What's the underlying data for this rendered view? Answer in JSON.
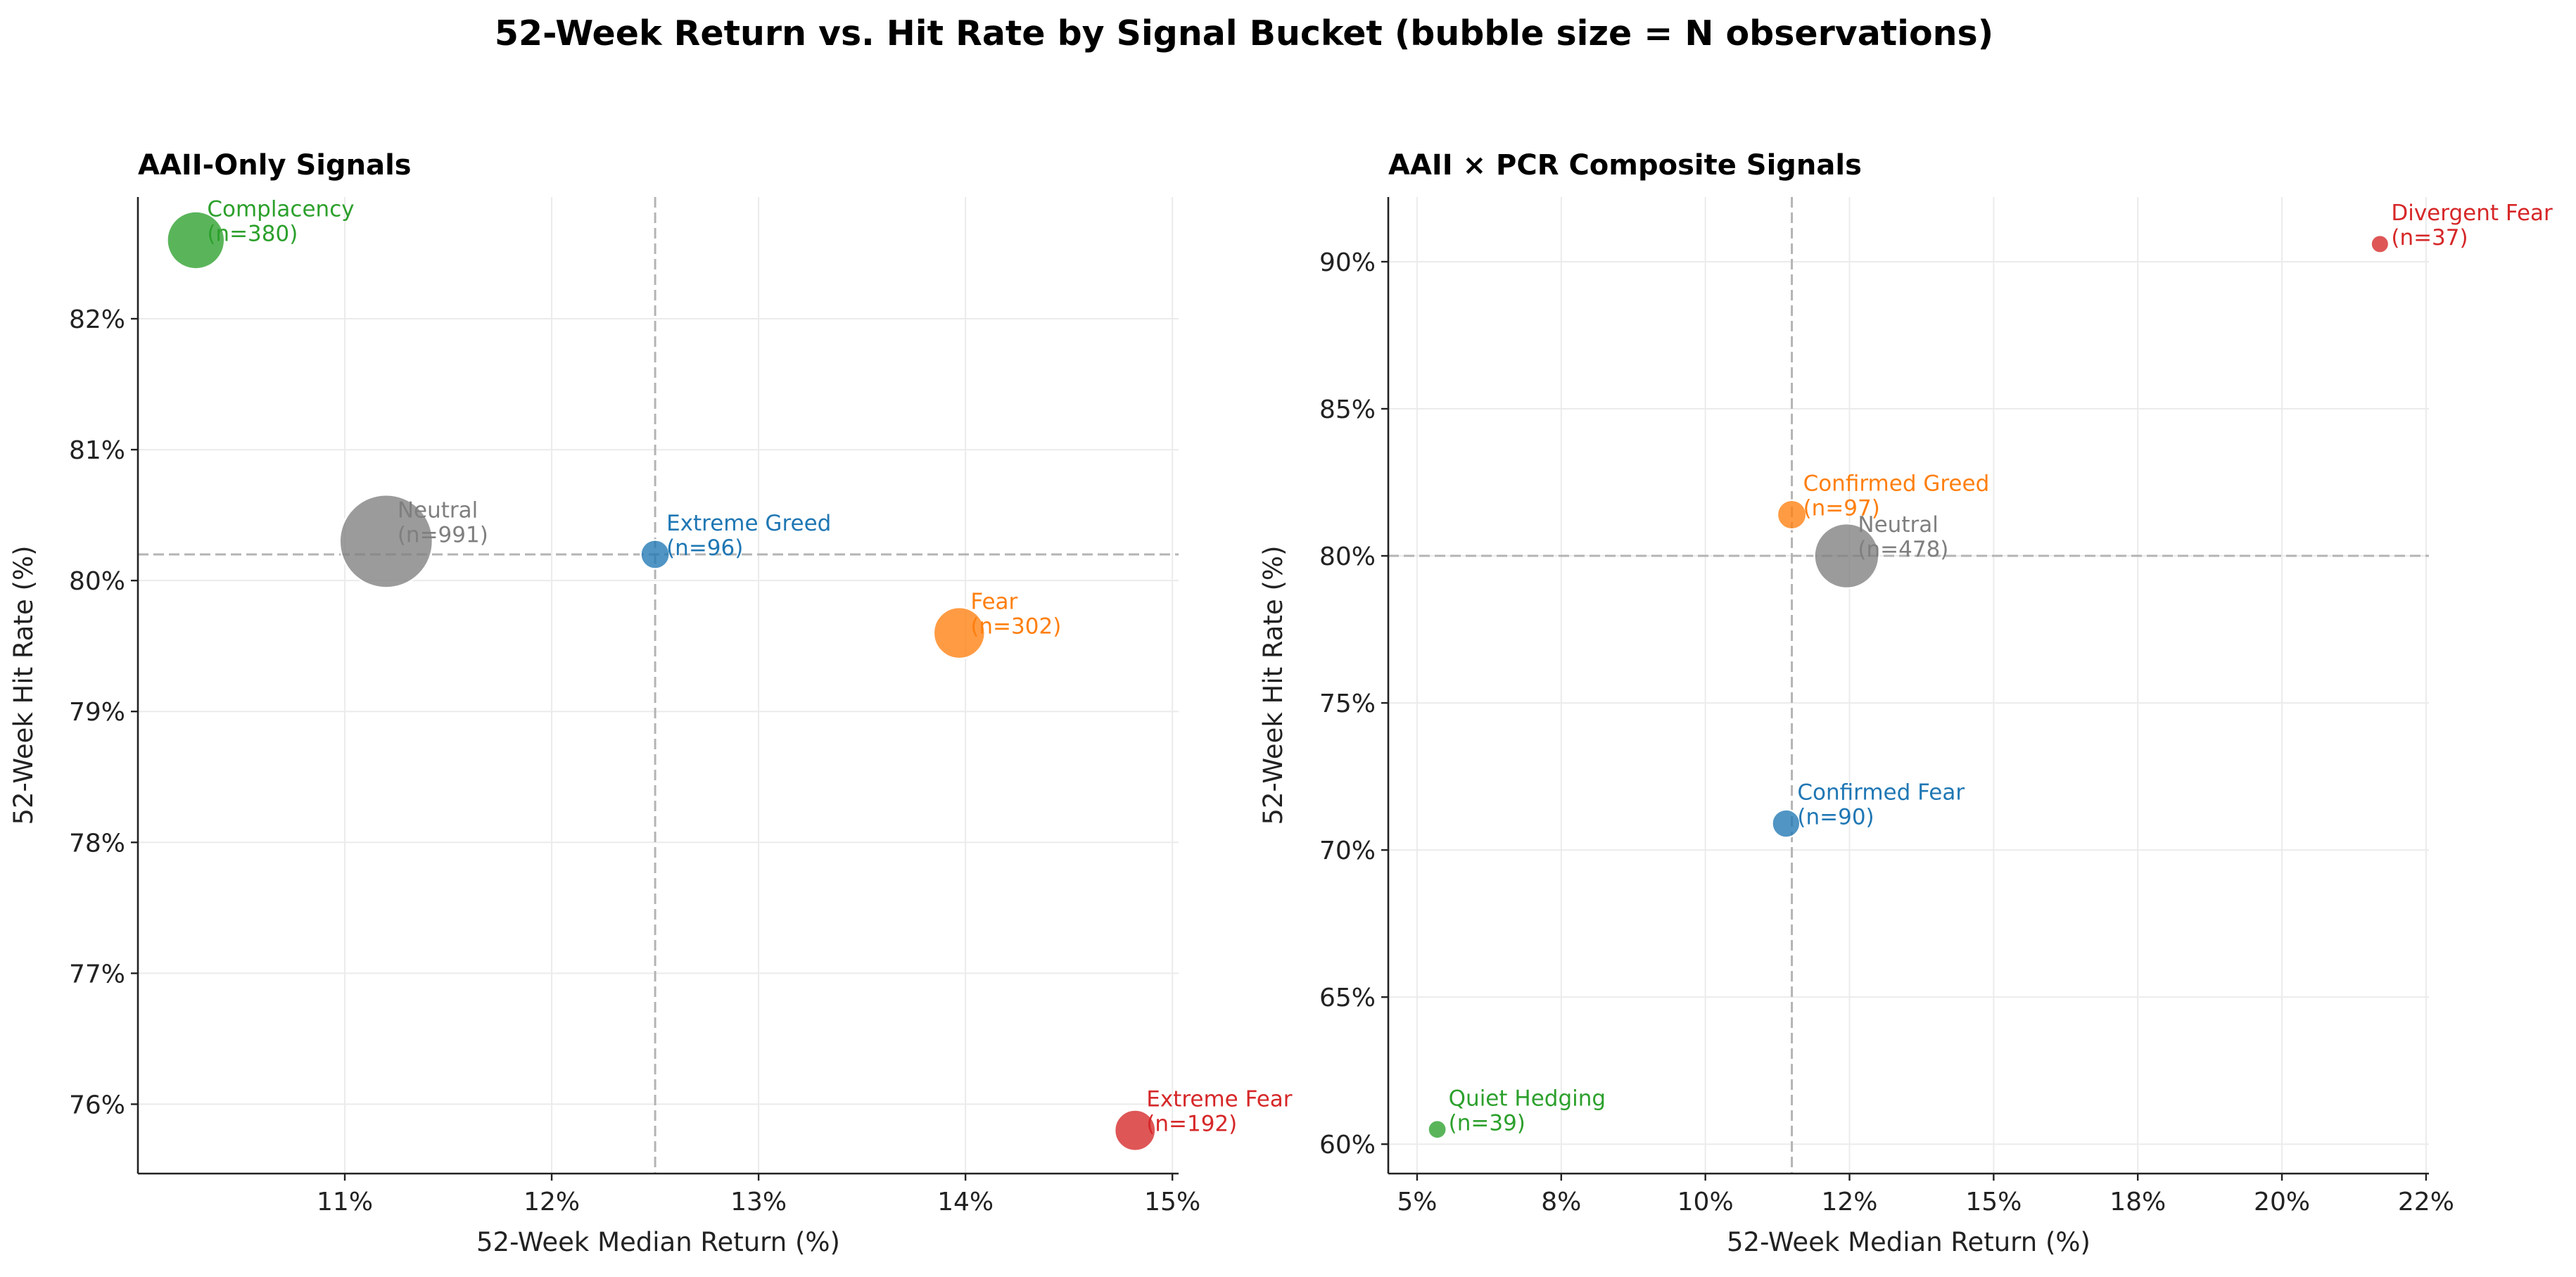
{
  "figure": {
    "suptitle": "52-Week Return vs. Hit Rate by Signal Bucket  (bubble size = N observations)"
  },
  "chart_data": [
    {
      "type": "scatter",
      "title": "AAII-Only Signals",
      "xlabel": "52-Week Median Return (%)",
      "ylabel": "52-Week Hit Rate (%)",
      "xlim": [
        10.0,
        15.03
      ],
      "ylim": [
        75.47,
        82.93
      ],
      "xticks": [
        11,
        12,
        13,
        14,
        15
      ],
      "xtick_labels": [
        "11%",
        "12%",
        "13%",
        "14%",
        "15%"
      ],
      "yticks": [
        76,
        77,
        78,
        79,
        80,
        81,
        82
      ],
      "ytick_labels": [
        "76%",
        "77%",
        "78%",
        "79%",
        "80%",
        "81%",
        "82%"
      ],
      "ref_x": 12.5,
      "ref_y": 80.2,
      "grid": true,
      "bubble_size": "N observations",
      "points": [
        {
          "name": "Complacency",
          "label": "(n=380)",
          "n": 380,
          "x": 10.28,
          "y": 82.6,
          "color": "#2ca02c"
        },
        {
          "name": "Neutral",
          "label": "(n=991)",
          "n": 991,
          "x": 11.2,
          "y": 80.3,
          "color": "#7f7f7f"
        },
        {
          "name": "Extreme Greed",
          "label": "(n=96)",
          "n": 96,
          "x": 12.5,
          "y": 80.2,
          "color": "#1f77b4"
        },
        {
          "name": "Fear",
          "label": "(n=302)",
          "n": 302,
          "x": 13.97,
          "y": 79.6,
          "color": "#ff7f0e"
        },
        {
          "name": "Extreme Fear",
          "label": "(n=192)",
          "n": 192,
          "x": 14.82,
          "y": 75.8,
          "color": "#d62728"
        }
      ]
    },
    {
      "type": "scatter",
      "title": "AAII × PCR Composite Signals",
      "xlabel": "52-Week Median Return (%)",
      "ylabel": "52-Week Hit Rate (%)",
      "xlim": [
        4.5,
        22.55
      ],
      "ylim": [
        59.0,
        92.2
      ],
      "xticks": [
        5,
        7.5,
        10,
        12.5,
        15,
        17.5,
        20,
        22.5
      ],
      "xtick_labels": [
        "5%",
        "8%",
        "10%",
        "12%",
        "15%",
        "18%",
        "20%",
        "22%"
      ],
      "yticks": [
        60,
        65,
        70,
        75,
        80,
        85,
        90
      ],
      "ytick_labels": [
        "60%",
        "65%",
        "70%",
        "75%",
        "80%",
        "85%",
        "90%"
      ],
      "ref_x": 11.5,
      "ref_y": 80.0,
      "grid": true,
      "bubble_size": "N observations",
      "points": [
        {
          "name": "Divergent Fear",
          "label": "(n=37)",
          "n": 37,
          "x": 21.7,
          "y": 90.6,
          "color": "#d62728"
        },
        {
          "name": "Confirmed Greed",
          "label": "(n=97)",
          "n": 97,
          "x": 11.5,
          "y": 81.4,
          "color": "#ff7f0e"
        },
        {
          "name": "Neutral",
          "label": "(n=478)",
          "n": 478,
          "x": 12.45,
          "y": 80.0,
          "color": "#7f7f7f"
        },
        {
          "name": "Confirmed Fear",
          "label": "(n=90)",
          "n": 90,
          "x": 11.4,
          "y": 70.9,
          "color": "#1f77b4"
        },
        {
          "name": "Quiet Hedging",
          "label": "(n=39)",
          "n": 39,
          "x": 5.35,
          "y": 60.5,
          "color": "#2ca02c"
        }
      ]
    }
  ]
}
